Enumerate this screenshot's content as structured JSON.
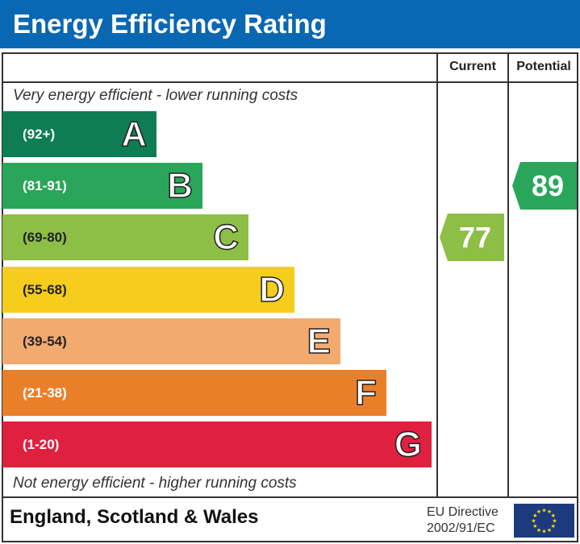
{
  "title": "Energy Efficiency Rating",
  "headers": {
    "current": "Current",
    "potential": "Potential"
  },
  "top_note": "Very energy efficient - lower running costs",
  "bottom_note": "Not energy efficient - higher running costs",
  "region": "England, Scotland & Wales",
  "directive": {
    "line1": "EU Directive",
    "line2": "2002/91/EC"
  },
  "colors": {
    "title_bg": "#0a67b2",
    "flag": "#1d3a7e"
  },
  "chart_data": {
    "type": "bar",
    "bands": [
      {
        "letter": "A",
        "range": "(92+)",
        "color": "#0e7d55"
      },
      {
        "letter": "B",
        "range": "(81-91)",
        "color": "#2aa65a"
      },
      {
        "letter": "C",
        "range": "(69-80)",
        "color": "#8dbe45"
      },
      {
        "letter": "D",
        "range": "(55-68)",
        "color": "#f6cd1c"
      },
      {
        "letter": "E",
        "range": "(39-54)",
        "color": "#f2aa6e"
      },
      {
        "letter": "F",
        "range": "(21-38)",
        "color": "#ea7f2a"
      },
      {
        "letter": "G",
        "range": "(1-20)",
        "color": "#e0203f"
      }
    ],
    "current": {
      "value": "77",
      "band": "C"
    },
    "potential": {
      "value": "89",
      "band": "B"
    }
  }
}
